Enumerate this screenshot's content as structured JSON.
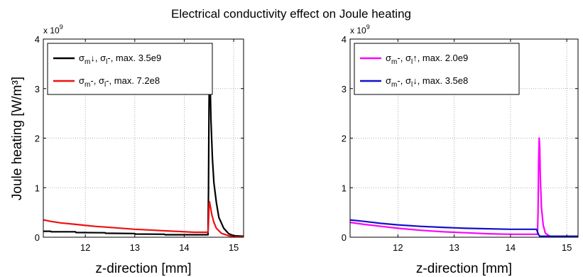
{
  "figure": {
    "title": "Electrical conductivity effect on Joule heating",
    "ylabel": "Joule heating [W/m³]",
    "xlabel": "z-direction [mm]",
    "multiplier": "x 10",
    "multiplier_exp": "9"
  },
  "chart_data": [
    {
      "type": "line",
      "title": "Electrical conductivity effect on Joule heating",
      "xlabel": "z-direction [mm]",
      "ylabel": "Joule heating [W/m³]",
      "xlim": [
        11.15,
        15.2
      ],
      "ylim": [
        0,
        4
      ],
      "xticks": [
        12,
        13,
        14,
        15
      ],
      "yticks": [
        0,
        1,
        2,
        3,
        4
      ],
      "y_multiplier": "x 10^9",
      "grid": true,
      "legend_position": "top-left",
      "series": [
        {
          "name": "σm↓, σl-, max. 3.5e9",
          "legend": {
            "main1": "σ",
            "sub1": "m",
            "suf1": "↓, ",
            "main2": "σ",
            "sub2": "l",
            "suf2": "-,  max. 3.5e9"
          },
          "color": "#000000",
          "points": [
            [
              11.15,
              0.12
            ],
            [
              11.3,
              0.12
            ],
            [
              11.31,
              0.11
            ],
            [
              11.8,
              0.11
            ],
            [
              11.81,
              0.095
            ],
            [
              12.4,
              0.09
            ],
            [
              12.41,
              0.08
            ],
            [
              13.0,
              0.075
            ],
            [
              13.01,
              0.065
            ],
            [
              13.6,
              0.06
            ],
            [
              13.61,
              0.05
            ],
            [
              14.48,
              0.05
            ],
            [
              14.49,
              0.9
            ],
            [
              14.5,
              2.6
            ],
            [
              14.51,
              3.5
            ],
            [
              14.52,
              3.3
            ],
            [
              14.54,
              2.4
            ],
            [
              14.57,
              1.6
            ],
            [
              14.6,
              1.1
            ],
            [
              14.65,
              0.7
            ],
            [
              14.7,
              0.4
            ],
            [
              14.8,
              0.18
            ],
            [
              14.9,
              0.07
            ],
            [
              15.0,
              0.03
            ],
            [
              15.2,
              0.02
            ]
          ]
        },
        {
          "name": "σm-, σl-, max. 7.2e8",
          "legend": {
            "main1": "σ",
            "sub1": "m",
            "suf1": "-,  ",
            "main2": "σ",
            "sub2": "l",
            "suf2": "-,  max. 7.2e8"
          },
          "color": "#ee1111",
          "points": [
            [
              11.15,
              0.35
            ],
            [
              11.3,
              0.32
            ],
            [
              11.5,
              0.29
            ],
            [
              11.8,
              0.26
            ],
            [
              12.2,
              0.22
            ],
            [
              12.6,
              0.19
            ],
            [
              13.0,
              0.16
            ],
            [
              13.4,
              0.14
            ],
            [
              13.8,
              0.12
            ],
            [
              14.2,
              0.1
            ],
            [
              14.48,
              0.1
            ],
            [
              14.49,
              0.3
            ],
            [
              14.5,
              0.6
            ],
            [
              14.51,
              0.72
            ],
            [
              14.53,
              0.62
            ],
            [
              14.56,
              0.45
            ],
            [
              14.6,
              0.3
            ],
            [
              14.65,
              0.18
            ],
            [
              14.75,
              0.08
            ],
            [
              14.9,
              0.03
            ],
            [
              15.0,
              0.01
            ],
            [
              15.2,
              0.01
            ]
          ]
        }
      ]
    },
    {
      "type": "line",
      "xlabel": "z-direction [mm]",
      "xlim": [
        11.15,
        15.2
      ],
      "ylim": [
        0,
        4
      ],
      "xticks": [
        12,
        13,
        14,
        15
      ],
      "yticks": [
        0,
        1,
        2,
        3,
        4
      ],
      "y_multiplier": "x 10^9",
      "grid": true,
      "legend_position": "top-left",
      "series": [
        {
          "name": "σm-, σl↑, max. 2.0e9",
          "legend": {
            "main1": "σ",
            "sub1": "m",
            "suf1": "-,  ",
            "main2": "σ",
            "sub2": "l",
            "suf2": "↑, max. 2.0e9"
          },
          "color": "#ff00ff",
          "points": [
            [
              11.15,
              0.3
            ],
            [
              11.4,
              0.26
            ],
            [
              11.7,
              0.22
            ],
            [
              12.0,
              0.18
            ],
            [
              12.4,
              0.14
            ],
            [
              12.8,
              0.11
            ],
            [
              13.2,
              0.09
            ],
            [
              13.6,
              0.07
            ],
            [
              14.0,
              0.06
            ],
            [
              14.48,
              0.06
            ],
            [
              14.49,
              0.5
            ],
            [
              14.5,
              1.5
            ],
            [
              14.51,
              2.0
            ],
            [
              14.52,
              1.8
            ],
            [
              14.53,
              1.2
            ],
            [
              14.55,
              0.6
            ],
            [
              14.58,
              0.25
            ],
            [
              14.62,
              0.08
            ],
            [
              14.7,
              0.02
            ],
            [
              15.2,
              0.01
            ]
          ]
        },
        {
          "name": "σm-, σl↓, max. 3.5e8",
          "legend": {
            "main1": "σ",
            "sub1": "m",
            "suf1": "-,  ",
            "main2": "σ",
            "sub2": "l",
            "suf2": "↓, max. 3.5e8"
          },
          "color": "#1111cc",
          "points": [
            [
              11.15,
              0.35
            ],
            [
              11.4,
              0.32
            ],
            [
              11.7,
              0.28
            ],
            [
              12.0,
              0.25
            ],
            [
              12.4,
              0.22
            ],
            [
              12.8,
              0.2
            ],
            [
              13.2,
              0.18
            ],
            [
              13.6,
              0.17
            ],
            [
              14.0,
              0.16
            ],
            [
              14.46,
              0.16
            ],
            [
              14.47,
              0.14
            ],
            [
              14.5,
              0.05
            ],
            [
              14.52,
              0.02
            ],
            [
              15.2,
              0.02
            ]
          ]
        }
      ]
    }
  ]
}
